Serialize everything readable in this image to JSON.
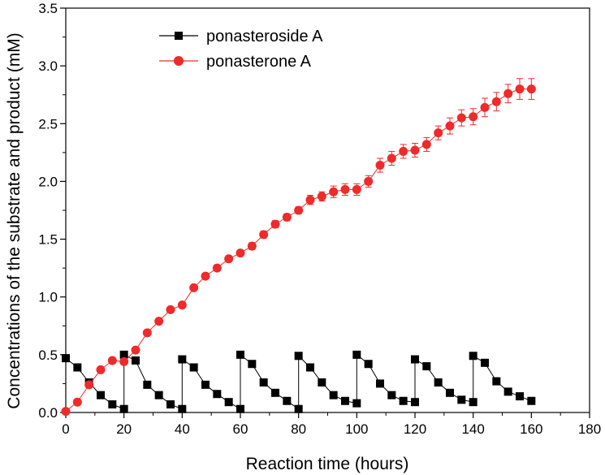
{
  "chart_data": {
    "type": "line",
    "title": "",
    "xlabel": "Reaction time (hours)",
    "ylabel": "Concentrations of the substrate and product (mM)",
    "xlim": [
      0,
      180
    ],
    "ylim": [
      0,
      3.5
    ],
    "xticks": [
      "0",
      "20",
      "40",
      "60",
      "80",
      "100",
      "120",
      "140",
      "160",
      "180"
    ],
    "yticks": [
      "0.0",
      "0.5",
      "1.0",
      "1.5",
      "2.0",
      "2.5",
      "3.0",
      "3.5"
    ],
    "grid": false,
    "legend_position": "top-left",
    "series": [
      {
        "name": "ponasteroside A",
        "color": "#000000",
        "marker": "square",
        "x": [
          0,
          4,
          8,
          12,
          16,
          20,
          20,
          24,
          28,
          32,
          36,
          40,
          40,
          44,
          48,
          52,
          56,
          60,
          60,
          64,
          68,
          72,
          76,
          80,
          80,
          84,
          88,
          92,
          96,
          100,
          100,
          104,
          108,
          112,
          116,
          120,
          120,
          124,
          128,
          132,
          136,
          140,
          140,
          144,
          148,
          152,
          156,
          160
        ],
        "y": [
          0.47,
          0.39,
          0.26,
          0.15,
          0.07,
          0.03,
          0.5,
          0.45,
          0.24,
          0.15,
          0.07,
          0.03,
          0.46,
          0.39,
          0.24,
          0.16,
          0.09,
          0.03,
          0.5,
          0.42,
          0.26,
          0.17,
          0.1,
          0.03,
          0.49,
          0.39,
          0.26,
          0.15,
          0.1,
          0.08,
          0.5,
          0.42,
          0.25,
          0.15,
          0.1,
          0.09,
          0.46,
          0.4,
          0.26,
          0.17,
          0.11,
          0.09,
          0.49,
          0.43,
          0.27,
          0.18,
          0.14,
          0.1
        ]
      },
      {
        "name": "ponasterone A",
        "color": "#ee2a2a",
        "marker": "circle",
        "x": [
          0,
          4,
          8,
          12,
          16,
          20,
          24,
          28,
          32,
          36,
          40,
          44,
          48,
          52,
          56,
          60,
          64,
          68,
          72,
          76,
          80,
          84,
          88,
          92,
          96,
          100,
          104,
          108,
          112,
          116,
          120,
          124,
          128,
          132,
          136,
          140,
          144,
          148,
          152,
          156,
          160
        ],
        "y": [
          0.01,
          0.09,
          0.24,
          0.37,
          0.45,
          0.44,
          0.54,
          0.69,
          0.79,
          0.89,
          0.93,
          1.08,
          1.18,
          1.25,
          1.33,
          1.38,
          1.44,
          1.54,
          1.63,
          1.69,
          1.75,
          1.84,
          1.87,
          1.91,
          1.93,
          1.93,
          2.0,
          2.14,
          2.2,
          2.26,
          2.27,
          2.32,
          2.42,
          2.48,
          2.55,
          2.56,
          2.64,
          2.69,
          2.76,
          2.8,
          2.8
        ],
        "error": [
          0.01,
          0.01,
          0.02,
          0.02,
          0.02,
          0.02,
          0.02,
          0.02,
          0.02,
          0.02,
          0.02,
          0.02,
          0.02,
          0.02,
          0.02,
          0.02,
          0.03,
          0.03,
          0.03,
          0.03,
          0.03,
          0.04,
          0.04,
          0.05,
          0.05,
          0.05,
          0.05,
          0.06,
          0.06,
          0.06,
          0.06,
          0.06,
          0.06,
          0.07,
          0.07,
          0.07,
          0.08,
          0.08,
          0.08,
          0.09,
          0.09
        ]
      }
    ]
  }
}
